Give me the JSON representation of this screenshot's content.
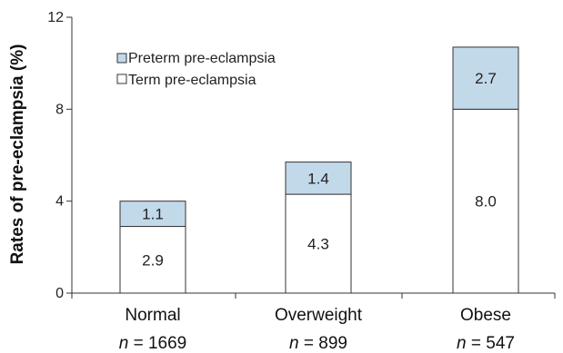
{
  "chart_data": {
    "type": "bar",
    "stacked": true,
    "ylabel": "Rates of pre-eclampsia (%)",
    "ylim": [
      0,
      12
    ],
    "yticks": [
      0,
      4,
      8,
      12
    ],
    "categories": [
      "Normal",
      "Overweight",
      "Obese"
    ],
    "n_prefix": "n",
    "n_values": [
      "= 1669",
      "= 899",
      "= 547"
    ],
    "series": [
      {
        "name": "Term pre-eclampsia",
        "values": [
          2.9,
          4.3,
          8.0
        ],
        "labels": [
          "2.9",
          "4.3",
          "8.0"
        ],
        "color": "#ffffff"
      },
      {
        "name": "Preterm pre-eclampsia",
        "values": [
          1.1,
          1.4,
          2.7
        ],
        "labels": [
          "1.1",
          "1.4",
          "2.7"
        ],
        "color": "#c2d9ea"
      }
    ],
    "legend": {
      "placement": "top-left",
      "entries": [
        "Preterm pre-eclampsia",
        "Term pre-eclampsia"
      ]
    },
    "grid": false
  }
}
